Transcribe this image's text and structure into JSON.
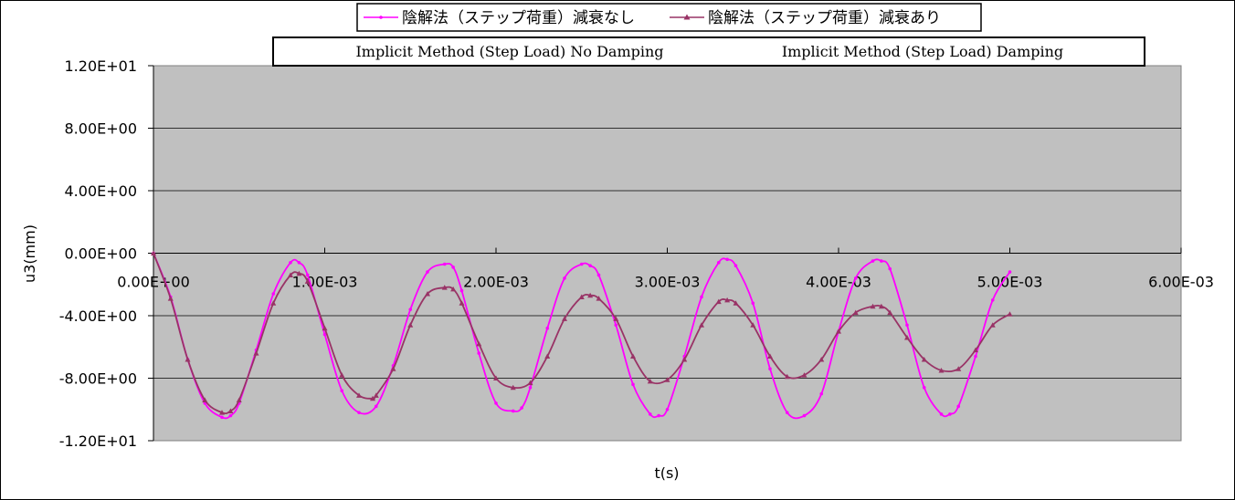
{
  "chart_data": {
    "type": "line",
    "title": "",
    "xlabel": "t(s)",
    "ylabel": "u3(mm)",
    "xlim": [
      0,
      0.006
    ],
    "ylim": [
      -12,
      12
    ],
    "x_ticks": [
      {
        "value": 0,
        "label": "0.00E+00"
      },
      {
        "value": 0.001,
        "label": "1.00E-03"
      },
      {
        "value": 0.002,
        "label": "2.00E-03"
      },
      {
        "value": 0.003,
        "label": "3.00E-03"
      },
      {
        "value": 0.004,
        "label": "4.00E-03"
      },
      {
        "value": 0.005,
        "label": "5.00E-03"
      },
      {
        "value": 0.006,
        "label": "6.00E-03"
      }
    ],
    "y_ticks": [
      {
        "value": 12,
        "label": "1.20E+01"
      },
      {
        "value": 8,
        "label": "8.00E+00"
      },
      {
        "value": 4,
        "label": "4.00E+00"
      },
      {
        "value": 0,
        "label": "0.00E+00"
      },
      {
        "value": -4,
        "label": "-4.00E+00"
      },
      {
        "value": -8,
        "label": "-8.00E+00"
      },
      {
        "value": -12,
        "label": "-1.20E+01"
      }
    ],
    "grid": "horizontal",
    "legend": "top",
    "plot_background": "#c0c0c0",
    "annotation": {
      "left_text": "Implicit Method (Step Load) No Damping",
      "right_text": "Implicit Method (Step Load) Damping"
    },
    "series": [
      {
        "name": "陰解法（ステップ荷重）減衰なし",
        "color": "#ff00ff",
        "marker": "dot",
        "x": [
          0,
          0.0001,
          0.0002,
          0.0003,
          0.0004,
          0.00045,
          0.0005,
          0.0006,
          0.0007,
          0.0008,
          0.00085,
          0.0009,
          0.001,
          0.0011,
          0.0012,
          0.0013,
          0.0014,
          0.0015,
          0.0016,
          0.0017,
          0.00175,
          0.0018,
          0.0019,
          0.002,
          0.0021,
          0.00215,
          0.0022,
          0.0023,
          0.0024,
          0.0025,
          0.00255,
          0.0026,
          0.0027,
          0.0028,
          0.0029,
          0.00295,
          0.003,
          0.0031,
          0.0032,
          0.0033,
          0.00335,
          0.0034,
          0.0035,
          0.0036,
          0.0037,
          0.0038,
          0.0039,
          0.004,
          0.0041,
          0.0042,
          0.00425,
          0.0043,
          0.0044,
          0.0045,
          0.0046,
          0.00465,
          0.0047,
          0.0048,
          0.0049,
          0.005
        ],
        "y": [
          0,
          -2.8,
          -6.8,
          -9.6,
          -10.5,
          -10.4,
          -9.6,
          -6.2,
          -2.6,
          -0.6,
          -0.6,
          -1.4,
          -5.2,
          -8.8,
          -10.2,
          -9.8,
          -7.2,
          -3.6,
          -1.2,
          -0.7,
          -0.9,
          -2.4,
          -6.4,
          -9.6,
          -10.1,
          -9.9,
          -8.6,
          -4.8,
          -1.6,
          -0.7,
          -0.8,
          -1.4,
          -4.6,
          -8.4,
          -10.3,
          -10.4,
          -10.0,
          -6.6,
          -2.8,
          -0.6,
          -0.4,
          -0.8,
          -3.2,
          -7.4,
          -10.2,
          -10.4,
          -9.0,
          -5.0,
          -1.6,
          -0.5,
          -0.5,
          -1.0,
          -4.6,
          -8.6,
          -10.3,
          -10.3,
          -9.8,
          -6.6,
          -3.0,
          -1.2
        ]
      },
      {
        "name": "陰解法（ステップ荷重）減衰あり",
        "color": "#993366",
        "marker": "triangle",
        "x": [
          0,
          0.0001,
          0.0002,
          0.0003,
          0.0004,
          0.00045,
          0.0005,
          0.0006,
          0.0007,
          0.0008,
          0.00085,
          0.0009,
          0.001,
          0.0011,
          0.0012,
          0.00128,
          0.0013,
          0.0014,
          0.0015,
          0.0016,
          0.0017,
          0.00175,
          0.0018,
          0.0019,
          0.002,
          0.0021,
          0.0022,
          0.0023,
          0.0024,
          0.0025,
          0.00255,
          0.0026,
          0.0027,
          0.0028,
          0.0029,
          0.003,
          0.0031,
          0.0032,
          0.0033,
          0.00335,
          0.0034,
          0.0035,
          0.0036,
          0.0037,
          0.0038,
          0.0039,
          0.004,
          0.0041,
          0.0042,
          0.00425,
          0.0043,
          0.0044,
          0.0045,
          0.0046,
          0.0047,
          0.0048,
          0.0049,
          0.005
        ],
        "y": [
          0,
          -2.9,
          -6.8,
          -9.4,
          -10.2,
          -10.1,
          -9.4,
          -6.4,
          -3.2,
          -1.4,
          -1.3,
          -1.8,
          -4.8,
          -7.8,
          -9.1,
          -9.3,
          -9.1,
          -7.4,
          -4.6,
          -2.6,
          -2.2,
          -2.3,
          -3.2,
          -5.8,
          -8.0,
          -8.6,
          -8.3,
          -6.6,
          -4.2,
          -2.8,
          -2.7,
          -2.9,
          -4.2,
          -6.6,
          -8.2,
          -8.1,
          -6.8,
          -4.6,
          -3.1,
          -3.0,
          -3.2,
          -4.6,
          -6.6,
          -7.9,
          -7.8,
          -6.8,
          -5.0,
          -3.8,
          -3.4,
          -3.4,
          -3.8,
          -5.4,
          -6.8,
          -7.5,
          -7.4,
          -6.2,
          -4.6,
          -3.9
        ]
      }
    ]
  }
}
